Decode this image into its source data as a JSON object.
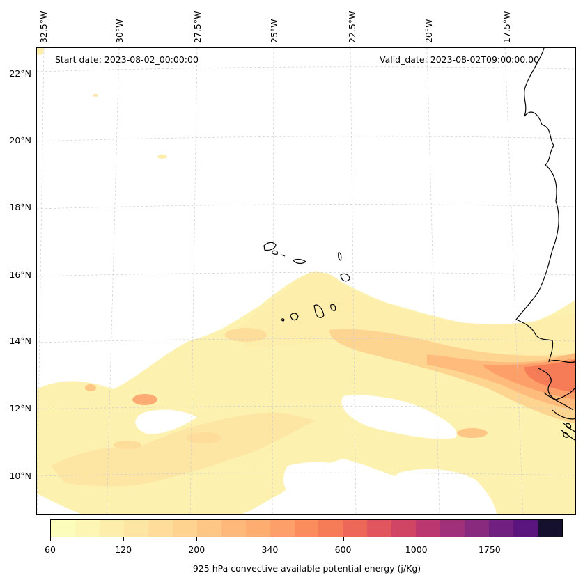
{
  "header": {
    "start_date": "Start date: 2023-08-02_00:00:00",
    "valid_date": "Valid_date: 2023-08-02T09:00:00.00"
  },
  "axes": {
    "longitude_labels": [
      "32.5°W",
      "30°W",
      "27.5°W",
      "25°W",
      "22.5°W",
      "20°W",
      "17.5°W"
    ],
    "latitude_labels": [
      "22°N",
      "20°N",
      "18°N",
      "16°N",
      "14°N",
      "12°N",
      "10°N"
    ]
  },
  "colorbar": {
    "title": "925 hPa convective available potential energy (j/Kg)",
    "tick_labels": [
      "60",
      "120",
      "200",
      "340",
      "600",
      "1000",
      "1750"
    ],
    "colors": [
      "#fcfcbb",
      "#fdf5b4",
      "#fdeeac",
      "#fde6a3",
      "#fedc99",
      "#fed28f",
      "#fec684",
      "#feb97a",
      "#fead71",
      "#fd9f68",
      "#fb8d5d",
      "#f67b57",
      "#ee6859",
      "#e1555e",
      "#d04564",
      "#ba3770",
      "#a1307a",
      "#8a2a7f",
      "#711f81",
      "#5a167e",
      "#15102e"
    ]
  },
  "map": {
    "region": "Eastern tropical Atlantic / West Africa",
    "field": "CAPE"
  }
}
